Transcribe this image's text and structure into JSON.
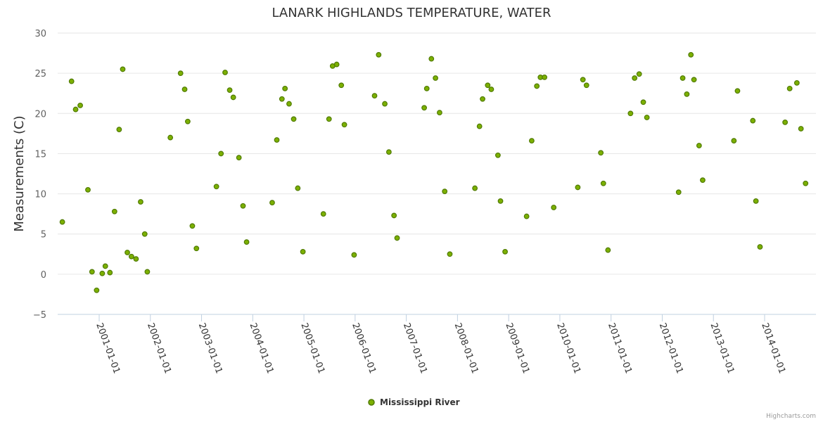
{
  "chart_data": {
    "type": "scatter",
    "title": "LANARK HIGHLANDS TEMPERATURE, WATER",
    "xlabel": "",
    "ylabel": "Measurements (C)",
    "ylim": [
      -5,
      30
    ],
    "yticks": [
      -5,
      0,
      5,
      10,
      15,
      20,
      25,
      30
    ],
    "xlim": [
      2000.0,
      2015.0
    ],
    "xtick_values": [
      2001,
      2002,
      2003,
      2004,
      2005,
      2006,
      2007,
      2008,
      2009,
      2010,
      2011,
      2012,
      2013,
      2014
    ],
    "xtick_labels": [
      "2001-01-01",
      "2002-01-01",
      "2003-01-01",
      "2004-01-01",
      "2005-01-01",
      "2006-01-01",
      "2007-01-01",
      "2008-01-01",
      "2009-01-01",
      "2010-01-01",
      "2011-01-01",
      "2012-01-01",
      "2013-01-01",
      "2014-01-01"
    ],
    "grid": true,
    "legend_position": "bottom-center",
    "series": [
      {
        "name": "Mississippi River",
        "color": "#7cb000",
        "points": [
          [
            2000.28,
            6.5
          ],
          [
            2000.46,
            24.0
          ],
          [
            2000.54,
            20.5
          ],
          [
            2000.63,
            21.0
          ],
          [
            2000.78,
            10.5
          ],
          [
            2000.86,
            0.3
          ],
          [
            2000.95,
            -2.0
          ],
          [
            2001.06,
            0.1
          ],
          [
            2001.12,
            1.0
          ],
          [
            2001.21,
            0.2
          ],
          [
            2001.3,
            7.8
          ],
          [
            2001.39,
            18.0
          ],
          [
            2001.46,
            25.5
          ],
          [
            2001.55,
            2.7
          ],
          [
            2001.63,
            2.2
          ],
          [
            2001.72,
            1.9
          ],
          [
            2001.81,
            9.0
          ],
          [
            2001.89,
            5.0
          ],
          [
            2001.94,
            0.3
          ],
          [
            2002.39,
            17.0
          ],
          [
            2002.59,
            25.0
          ],
          [
            2002.67,
            23.0
          ],
          [
            2002.73,
            19.0
          ],
          [
            2002.82,
            6.0
          ],
          [
            2002.9,
            3.2
          ],
          [
            2003.29,
            10.9
          ],
          [
            2003.38,
            15.0
          ],
          [
            2003.46,
            25.1
          ],
          [
            2003.55,
            22.9
          ],
          [
            2003.62,
            22.0
          ],
          [
            2003.73,
            14.5
          ],
          [
            2003.81,
            8.5
          ],
          [
            2003.88,
            4.0
          ],
          [
            2004.38,
            8.9
          ],
          [
            2004.47,
            16.7
          ],
          [
            2004.57,
            21.8
          ],
          [
            2004.63,
            23.1
          ],
          [
            2004.71,
            21.2
          ],
          [
            2004.8,
            19.3
          ],
          [
            2004.88,
            10.7
          ],
          [
            2004.98,
            2.8
          ],
          [
            2005.38,
            7.5
          ],
          [
            2005.49,
            19.3
          ],
          [
            2005.56,
            25.9
          ],
          [
            2005.64,
            26.1
          ],
          [
            2005.73,
            23.5
          ],
          [
            2005.79,
            18.6
          ],
          [
            2005.98,
            2.4
          ],
          [
            2006.38,
            22.2
          ],
          [
            2006.46,
            27.3
          ],
          [
            2006.58,
            21.2
          ],
          [
            2006.66,
            15.2
          ],
          [
            2006.76,
            7.3
          ],
          [
            2006.82,
            4.5
          ],
          [
            2007.35,
            20.7
          ],
          [
            2007.4,
            23.1
          ],
          [
            2007.49,
            26.8
          ],
          [
            2007.57,
            24.4
          ],
          [
            2007.65,
            20.1
          ],
          [
            2007.75,
            10.3
          ],
          [
            2007.85,
            2.5
          ],
          [
            2008.34,
            10.7
          ],
          [
            2008.43,
            18.4
          ],
          [
            2008.49,
            21.8
          ],
          [
            2008.59,
            23.5
          ],
          [
            2008.66,
            23.0
          ],
          [
            2008.79,
            14.8
          ],
          [
            2008.84,
            9.1
          ],
          [
            2008.93,
            2.8
          ],
          [
            2009.35,
            7.2
          ],
          [
            2009.45,
            16.6
          ],
          [
            2009.55,
            23.4
          ],
          [
            2009.62,
            24.5
          ],
          [
            2009.7,
            24.5
          ],
          [
            2009.88,
            8.3
          ],
          [
            2010.35,
            10.8
          ],
          [
            2010.45,
            24.2
          ],
          [
            2010.52,
            23.5
          ],
          [
            2010.8,
            15.1
          ],
          [
            2010.85,
            11.3
          ],
          [
            2010.94,
            3.0
          ],
          [
            2011.38,
            20.0
          ],
          [
            2011.46,
            24.4
          ],
          [
            2011.55,
            24.9
          ],
          [
            2011.63,
            21.4
          ],
          [
            2011.7,
            19.5
          ],
          [
            2012.32,
            10.2
          ],
          [
            2012.4,
            24.4
          ],
          [
            2012.48,
            22.4
          ],
          [
            2012.56,
            27.3
          ],
          [
            2012.62,
            24.2
          ],
          [
            2012.72,
            16.0
          ],
          [
            2012.79,
            11.7
          ],
          [
            2013.4,
            16.6
          ],
          [
            2013.47,
            22.8
          ],
          [
            2013.77,
            19.1
          ],
          [
            2013.83,
            9.1
          ],
          [
            2013.91,
            3.4
          ],
          [
            2014.4,
            18.9
          ],
          [
            2014.49,
            23.1
          ],
          [
            2014.63,
            23.8
          ],
          [
            2014.71,
            18.1
          ],
          [
            2014.8,
            11.3
          ]
        ]
      }
    ]
  },
  "credits": "Highcharts.com"
}
